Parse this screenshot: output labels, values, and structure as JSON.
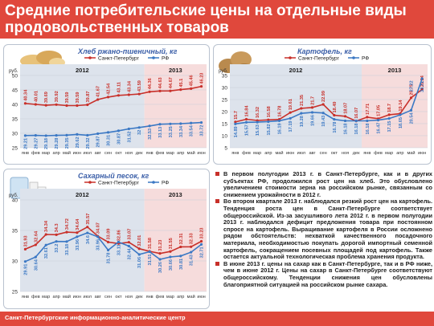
{
  "title": {
    "line1": "Средние потребительские цены на отдельные виды",
    "line2": "продовольственных товаров"
  },
  "footer": "Санкт-Петербургские информационно-аналитические центр",
  "text_paragraphs": [
    "В первом полугодии 2013 г. в Санкт-Петербурге, как и в других субъектах РФ, продолжился рост цен на хлеб. Это обусловлено увеличением стоимости зерна на российском рынке, связанным со снижением урожайности в 2012 г.",
    "Во втором квартале 2013 г. наблюдался резкий рост цен на картофель. Тенденция роста цен в Санкт-Петербурге соответствует общероссийской. Из-за засушливого лета 2012 г. в первом полугодии 2013 г. наблюдался дефицит предложения товара при постоянном спросе на картофель. Выращивание картофеля в России осложнено рядом обстоятельств: нехваткой качественного посадочного материала, необходимостью покупать дорогой импортный семенной картофель, сокращением посевных площадей под картофель. Также остается актуальной технологическая проблема хранения продукта.",
    "В июне 2013 г. цены на сахар как в Санкт-Петербурге, так и в РФ ниже, чем в июне 2012 г. Цены на сахар в Санкт-Петербурге соответствуют общероссийскому. Тенденции снижения цен обусловлены благоприятной ситуацией на российском рынке сахара."
  ],
  "colors": {
    "spb": "#c8302a",
    "rf": "#3b78c4",
    "band2012": "#dde3ec",
    "band2013": "#f6dcdc",
    "title_bg": "#e0483c"
  },
  "chart_data": [
    {
      "type": "line",
      "title": "Хлеб ржано-пшеничный, кг",
      "ylabel": "руб.",
      "ylim": [
        25,
        50
      ],
      "yticks": [
        25,
        30,
        35,
        40,
        45,
        50
      ],
      "periods": [
        "2012",
        "2013"
      ],
      "categories": [
        "янв",
        "фев",
        "мар",
        "апр",
        "май",
        "июн",
        "июл",
        "авг",
        "сен",
        "окт",
        "ноя",
        "дек",
        "янв",
        "фев",
        "мар",
        "апр",
        "май",
        "июн"
      ],
      "series": [
        {
          "name": "Санкт-Петербург",
          "values": [
            40.34,
            40.01,
            39.69,
            39.92,
            39.59,
            39.59,
            39.87,
            41.67,
            42.54,
            43.11,
            43.34,
            43.59,
            44.36,
            44.63,
            44.67,
            45.1,
            45.46,
            46.23
          ]
        },
        {
          "name": "РФ",
          "values": [
            29.21,
            29.27,
            29.18,
            29.28,
            29.35,
            29.62,
            29.32,
            29.87,
            30.31,
            30.87,
            31.52,
            32.0,
            32.53,
            33.13,
            33.25,
            33.34,
            33.54,
            33.72
          ]
        }
      ]
    },
    {
      "type": "line",
      "title": "Картофель, кг",
      "ylabel": "руб.",
      "ylim": [
        5,
        35
      ],
      "yticks": [
        5,
        10,
        15,
        20,
        25,
        30,
        35
      ],
      "periods": [
        "2012",
        "2013"
      ],
      "categories": [
        "янв",
        "фев",
        "мар",
        "апр",
        "май",
        "июн",
        "июл",
        "авг",
        "сен",
        "окт",
        "ноя",
        "дек",
        "янв",
        "фев",
        "мар",
        "апр",
        "май",
        "июн"
      ],
      "series": [
        {
          "name": "Санкт-Петербург",
          "values": [
            15.7,
            16.84,
            16.32,
            16.58,
            16.78,
            19.61,
            21.35,
            21.7,
            22.99,
            18.49,
            18.07,
            16.07,
            17.71,
            17.05,
            18.7,
            19.14,
            25.75,
            29.24
          ]
        },
        {
          "name": "РФ",
          "values": [
            14.89,
            15.57,
            15.63,
            15.82,
            16.19,
            17.19,
            19.28,
            19.66,
            19.43,
            16.78,
            16.18,
            16.18,
            16.18,
            16.47,
            17.15,
            18.65,
            20.54,
            33.71
          ]
        }
      ],
      "extra_labels": [
        "27.22"
      ]
    },
    {
      "type": "line",
      "title": "Сахарный песок, кг",
      "ylabel": "руб.",
      "ylim": [
        25,
        40
      ],
      "yticks": [
        25,
        30,
        35,
        40
      ],
      "periods": [
        "2012",
        "2013"
      ],
      "categories": [
        "янв",
        "фев",
        "мар",
        "апр",
        "май",
        "июн",
        "июл",
        "авг",
        "сен",
        "окт",
        "ноя",
        "дек",
        "янв",
        "фев",
        "мар",
        "апр",
        "май",
        "июн"
      ],
      "series": [
        {
          "name": "Санкт-Петербург",
          "values": [
            31.93,
            32.64,
            34.34,
            34.3,
            34.72,
            34.64,
            35.57,
            34.07,
            33.09,
            32.86,
            33.07,
            32.01,
            31.58,
            31.23,
            31.55,
            32.31,
            32.33,
            33.23
          ]
        },
        {
          "name": "РФ",
          "values": [
            29.91,
            30.64,
            32.61,
            33.2,
            33.18,
            33.96,
            34.6,
            33.96,
            31.78,
            33.11,
            32.44,
            31.06,
            31.51,
            30.26,
            30.66,
            30.81,
            31.43,
            32.71
          ]
        }
      ]
    }
  ]
}
